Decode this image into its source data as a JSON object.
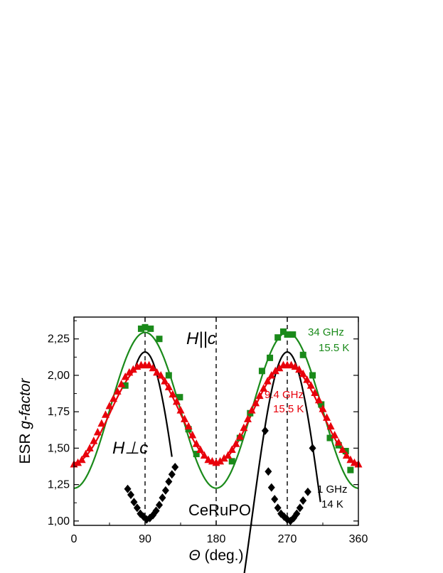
{
  "chart_data": {
    "type": "scatter",
    "xlabel_symbol": "Θ",
    "xlabel_unit": "(deg.)",
    "ylabel_prefix": "ESR ",
    "ylabel_italic": "g-factor",
    "xlim": [
      0,
      360
    ],
    "ylim": [
      0.97,
      2.4
    ],
    "x_ticks": [
      0,
      90,
      180,
      270,
      360
    ],
    "x_tick_labels": [
      "0",
      "90",
      "180",
      "270",
      "360"
    ],
    "y_ticks": [
      1.0,
      1.25,
      1.5,
      1.75,
      2.0,
      2.25
    ],
    "y_tick_labels": [
      "1,00",
      "1,25",
      "1,50",
      "1,75",
      "2,00",
      "2,25"
    ],
    "grid": false,
    "vlines": [
      90,
      180,
      270
    ],
    "annotations": {
      "hperp": "H⊥c",
      "hpar": "H||c",
      "sample": "CeRuPO",
      "green_freq": "34 GHz",
      "green_temp": "15.5 K",
      "red_freq": "9.4 GHz",
      "red_temp": "15.5 K",
      "black_freq": "1 GHz",
      "black_temp": "14 K"
    },
    "series": [
      {
        "label": "34 GHz 15.5 K",
        "color": "#1a8a1a",
        "marker": "square",
        "points": [
          [
            65,
            1.93
          ],
          [
            85,
            2.32
          ],
          [
            90,
            2.33
          ],
          [
            97,
            2.32
          ],
          [
            108,
            2.25
          ],
          [
            120,
            2.0
          ],
          [
            134,
            1.85
          ],
          [
            145,
            1.63
          ],
          [
            155,
            1.46
          ],
          [
            200,
            1.41
          ],
          [
            210,
            1.57
          ],
          [
            223,
            1.74
          ],
          [
            238,
            2.03
          ],
          [
            248,
            2.12
          ],
          [
            258,
            2.26
          ],
          [
            265,
            2.3
          ],
          [
            270,
            2.28
          ],
          [
            277,
            2.28
          ],
          [
            290,
            2.14
          ],
          [
            302,
            2.0
          ],
          [
            313,
            1.8
          ],
          [
            324,
            1.57
          ],
          [
            335,
            1.52
          ],
          [
            344,
            1.48
          ],
          [
            350,
            1.35
          ]
        ],
        "fit": {
          "offset": 1.76,
          "amp": 0.535
        }
      },
      {
        "label": "9.4 GHz 15.5 K",
        "color": "#e8000b",
        "marker": "triangle",
        "points": [
          [
            0,
            1.39
          ],
          [
            5,
            1.4
          ],
          [
            10,
            1.42
          ],
          [
            15,
            1.46
          ],
          [
            20,
            1.5
          ],
          [
            25,
            1.55
          ],
          [
            30,
            1.61
          ],
          [
            35,
            1.67
          ],
          [
            40,
            1.73
          ],
          [
            45,
            1.79
          ],
          [
            50,
            1.84
          ],
          [
            55,
            1.89
          ],
          [
            60,
            1.94
          ],
          [
            65,
            1.99
          ],
          [
            70,
            2.02
          ],
          [
            75,
            2.04
          ],
          [
            80,
            2.06
          ],
          [
            85,
            2.07
          ],
          [
            90,
            2.07
          ],
          [
            95,
            2.07
          ],
          [
            100,
            2.05
          ],
          [
            105,
            2.02
          ],
          [
            110,
            2.0
          ],
          [
            115,
            1.96
          ],
          [
            120,
            1.92
          ],
          [
            125,
            1.87
          ],
          [
            130,
            1.82
          ],
          [
            135,
            1.76
          ],
          [
            140,
            1.7
          ],
          [
            145,
            1.65
          ],
          [
            150,
            1.59
          ],
          [
            155,
            1.53
          ],
          [
            160,
            1.49
          ],
          [
            165,
            1.45
          ],
          [
            170,
            1.42
          ],
          [
            175,
            1.41
          ],
          [
            180,
            1.4
          ],
          [
            185,
            1.41
          ],
          [
            190,
            1.43
          ],
          [
            195,
            1.45
          ],
          [
            200,
            1.49
          ],
          [
            205,
            1.53
          ],
          [
            210,
            1.58
          ],
          [
            215,
            1.64
          ],
          [
            220,
            1.7
          ],
          [
            225,
            1.76
          ],
          [
            230,
            1.81
          ],
          [
            235,
            1.86
          ],
          [
            240,
            1.91
          ],
          [
            245,
            1.96
          ],
          [
            250,
            2.0
          ],
          [
            255,
            2.03
          ],
          [
            260,
            2.05
          ],
          [
            265,
            2.07
          ],
          [
            270,
            2.07
          ],
          [
            275,
            2.07
          ],
          [
            280,
            2.06
          ],
          [
            285,
            2.04
          ],
          [
            290,
            2.01
          ],
          [
            295,
            1.97
          ],
          [
            300,
            1.93
          ],
          [
            305,
            1.88
          ],
          [
            310,
            1.83
          ],
          [
            315,
            1.77
          ],
          [
            320,
            1.71
          ],
          [
            325,
            1.65
          ],
          [
            330,
            1.59
          ],
          [
            335,
            1.54
          ],
          [
            340,
            1.49
          ],
          [
            345,
            1.45
          ],
          [
            350,
            1.42
          ],
          [
            355,
            1.4
          ],
          [
            360,
            1.39
          ]
        ],
        "fit": {
          "offset": 1.735,
          "amp": 0.335
        }
      },
      {
        "label": "1 GHz 14 K",
        "color": "#000000",
        "marker": "diamond",
        "points": [
          [
            68,
            1.22
          ],
          [
            72,
            1.18
          ],
          [
            76,
            1.13
          ],
          [
            80,
            1.09
          ],
          [
            84,
            1.05
          ],
          [
            88,
            1.03
          ],
          [
            92,
            1.01
          ],
          [
            96,
            1.02
          ],
          [
            100,
            1.04
          ],
          [
            104,
            1.07
          ],
          [
            108,
            1.11
          ],
          [
            112,
            1.16
          ],
          [
            116,
            1.21
          ],
          [
            120,
            1.27
          ],
          [
            124,
            1.32
          ],
          [
            128,
            1.37
          ],
          [
            242,
            1.62
          ],
          [
            246,
            1.34
          ],
          [
            250,
            1.23
          ],
          [
            254,
            1.15
          ],
          [
            258,
            1.09
          ],
          [
            262,
            1.05
          ],
          [
            266,
            1.03
          ],
          [
            270,
            1.01
          ],
          [
            274,
            1.0
          ],
          [
            278,
            1.02
          ],
          [
            282,
            1.05
          ],
          [
            286,
            1.09
          ],
          [
            290,
            1.14
          ],
          [
            296,
            1.2
          ],
          [
            302,
            1.5
          ]
        ],
        "fit": {
          "offset": 1.01,
          "amp": 1.15,
          "curve_x": [
            [
              78,
              124
            ],
            [
              212,
              312
            ]
          ]
        }
      }
    ]
  }
}
